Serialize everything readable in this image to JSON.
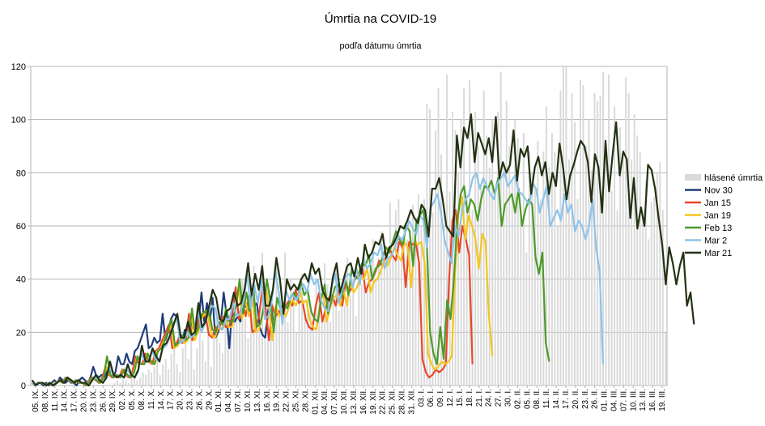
{
  "chart_data": {
    "type": "line",
    "title": "Úmrtia na COVID-19",
    "subtitle": "podľa dátumu úmrtia",
    "ylim": [
      0,
      120
    ],
    "yticks": [
      0,
      20,
      40,
      60,
      80,
      100,
      120
    ],
    "grid": true,
    "legend_position": "right",
    "x_tick_labels": [
      "05. IX.",
      "08. IX.",
      "11. IX.",
      "14. IX.",
      "17. IX.",
      "20. IX.",
      "23. IX.",
      "26. IX.",
      "29. IX.",
      "02. X.",
      "05. X.",
      "08. X.",
      "11. X.",
      "14. X.",
      "17. X.",
      "20. X.",
      "23. X.",
      "26. X.",
      "29. X.",
      "01. XI.",
      "04. XI.",
      "07. XI.",
      "10. XI.",
      "13. XI.",
      "16. XI.",
      "19. XI.",
      "22. XI.",
      "25. XI.",
      "28. XI.",
      "01. XII.",
      "04. XII.",
      "07. XII.",
      "10. XII.",
      "13. XII.",
      "16. XII.",
      "19. XII.",
      "22. XII.",
      "25. XII.",
      "28. XII.",
      "31. XII.",
      "03. I.",
      "06. I.",
      "09. I.",
      "12. I.",
      "15. I.",
      "18. I.",
      "21. I.",
      "24. I.",
      "27. I.",
      "30. I.",
      "02. II.",
      "05. II.",
      "08. II.",
      "11. II.",
      "14. II.",
      "17. II.",
      "20. II.",
      "23. II.",
      "26. II.",
      "01. III.",
      "04. III.",
      "07. III.",
      "10. III.",
      "13. III.",
      "16. III.",
      "19. III."
    ],
    "bars": {
      "name": "hlásené úmrtia",
      "color": "#d9d9d9",
      "values": [
        0,
        0,
        0,
        0,
        0,
        0,
        0,
        0,
        0,
        0,
        0,
        0,
        0,
        0,
        0,
        0,
        0,
        0,
        0,
        0,
        0,
        0,
        0,
        0,
        0,
        0,
        0,
        0,
        0,
        1,
        2,
        1,
        3,
        2,
        1,
        3,
        4,
        2,
        3,
        5,
        4,
        6,
        5,
        7,
        9,
        4,
        8,
        10,
        6,
        12,
        15,
        8,
        5,
        14,
        18,
        10,
        20,
        6,
        14,
        22,
        17,
        9,
        25,
        7,
        18,
        30,
        16,
        12,
        27,
        22,
        19,
        35,
        28,
        24,
        40,
        25,
        18,
        33,
        45,
        20,
        28,
        50,
        22,
        38,
        30,
        25,
        45,
        35,
        28,
        50,
        24,
        40,
        32,
        20,
        38,
        42,
        25,
        35,
        30,
        22,
        40,
        34,
        27,
        46,
        38,
        24,
        32,
        44,
        28,
        36,
        30,
        48,
        34,
        40,
        26,
        42,
        38,
        50,
        36,
        44,
        55,
        40,
        48,
        58,
        46,
        52,
        69,
        48,
        66,
        70,
        50,
        60,
        55,
        58,
        68,
        63,
        72,
        60,
        70,
        106,
        104,
        65,
        96,
        112,
        87,
        60,
        117,
        73,
        103,
        96,
        80,
        100,
        112,
        70,
        115,
        66,
        103,
        90,
        75,
        111,
        94,
        82,
        100,
        72,
        103,
        118,
        83,
        107,
        90,
        78,
        100,
        93,
        66,
        95,
        50,
        88,
        80,
        75,
        92,
        70,
        88,
        105,
        82,
        95,
        88,
        60,
        111,
        120,
        120,
        85,
        110,
        99,
        70,
        115,
        113,
        90,
        100,
        81,
        110,
        107,
        109,
        118,
        90,
        117,
        73,
        105,
        66,
        97,
        88,
        116,
        110,
        85,
        102,
        94,
        88,
        65,
        77,
        55,
        69,
        71,
        80,
        84,
        66,
        20
      ]
    },
    "series": [
      {
        "name": "Nov 30",
        "color": "#1f3d7a",
        "x_end_index": 85,
        "values": [
          1,
          0,
          1,
          1,
          0,
          1,
          0,
          1,
          2,
          1,
          3,
          2,
          1,
          2,
          1,
          1,
          0,
          2,
          3,
          2,
          1,
          3,
          7,
          4,
          3,
          4,
          3,
          6,
          4,
          3,
          5,
          11,
          8,
          8,
          12,
          9,
          8,
          13,
          14,
          17,
          20,
          23,
          14,
          15,
          18,
          16,
          17,
          27,
          17,
          20,
          25,
          27,
          26,
          19,
          16,
          21,
          20,
          26,
          21,
          21,
          25,
          35,
          24,
          31,
          24,
          33,
          18,
          20,
          24,
          35,
          27,
          14,
          28,
          24,
          26,
          24,
          29,
          30,
          28,
          34,
          30,
          31,
          22,
          19,
          18,
          28,
          33,
          22
        ]
      },
      {
        "name": "Jan 15",
        "color": "#e8472a",
        "x_end_index": 155,
        "values": [
          1,
          0,
          1,
          1,
          0,
          1,
          0,
          1,
          2,
          1,
          3,
          2,
          1,
          2,
          1,
          1,
          0,
          2,
          3,
          2,
          1,
          3,
          7,
          4,
          3,
          4,
          3,
          6,
          4,
          3,
          5,
          11,
          8,
          8,
          12,
          9,
          8,
          13,
          14,
          17,
          20,
          23,
          14,
          15,
          18,
          16,
          17,
          27,
          17,
          20,
          25,
          27,
          26,
          19,
          18,
          22,
          21,
          26,
          22,
          22,
          27,
          37,
          25,
          32,
          26,
          34,
          20,
          21,
          26,
          37,
          29,
          17,
          30,
          26,
          28,
          26,
          30,
          32,
          30,
          36,
          31,
          32,
          25,
          22,
          21,
          30,
          35,
          24,
          29,
          33,
          34,
          30,
          36,
          30,
          39,
          35,
          37,
          41,
          40,
          44,
          35,
          39,
          40,
          43,
          47,
          45,
          48,
          52,
          49,
          47,
          54,
          52,
          37,
          54,
          53,
          54,
          46,
          10,
          5,
          3,
          4,
          6,
          5,
          6,
          8,
          40,
          62,
          66,
          50,
          60,
          55,
          49,
          8
        ]
      },
      {
        "name": "Jan 19",
        "color": "#f5c51c",
        "x_end_index": 162,
        "values": [
          1,
          0,
          1,
          1,
          0,
          1,
          0,
          1,
          2,
          1,
          3,
          2,
          1,
          2,
          1,
          1,
          0,
          2,
          3,
          2,
          1,
          3,
          7,
          4,
          3,
          4,
          3,
          6,
          4,
          3,
          5,
          11,
          8,
          8,
          12,
          9,
          8,
          13,
          14,
          17,
          20,
          23,
          14,
          15,
          18,
          16,
          17,
          27,
          17,
          20,
          25,
          27,
          26,
          19,
          18,
          22,
          21,
          26,
          22,
          22,
          27,
          37,
          25,
          32,
          26,
          34,
          20,
          21,
          26,
          37,
          29,
          17,
          30,
          26,
          28,
          26,
          30,
          32,
          30,
          36,
          31,
          32,
          25,
          22,
          21,
          30,
          35,
          24,
          29,
          33,
          34,
          30,
          36,
          30,
          39,
          35,
          37,
          41,
          40,
          44,
          35,
          39,
          40,
          43,
          47,
          45,
          48,
          52,
          49,
          47,
          54,
          52,
          37,
          54,
          53,
          54,
          46,
          12,
          8,
          6,
          7,
          9,
          8,
          9,
          11,
          42,
          65,
          71,
          55,
          64,
          60,
          55,
          44,
          57,
          54,
          26,
          11
        ]
      },
      {
        "name": "Feb 13",
        "color": "#4d9a2a",
        "x_end_index": 182,
        "values": [
          1,
          0,
          1,
          1,
          0,
          1,
          0,
          1,
          2,
          1,
          3,
          2,
          1,
          2,
          1,
          1,
          0,
          2,
          3,
          2,
          1,
          3,
          11,
          4,
          3,
          4,
          3,
          6,
          4,
          3,
          5,
          11,
          8,
          8,
          12,
          9,
          8,
          13,
          14,
          17,
          21,
          25,
          15,
          16,
          19,
          17,
          18,
          29,
          19,
          22,
          27,
          28,
          28,
          21,
          20,
          24,
          23,
          29,
          24,
          24,
          30,
          40,
          27,
          35,
          28,
          37,
          22,
          23,
          29,
          40,
          32,
          20,
          33,
          29,
          31,
          29,
          33,
          35,
          32,
          39,
          34,
          36,
          28,
          25,
          24,
          33,
          38,
          27,
          32,
          37,
          38,
          33,
          40,
          34,
          44,
          40,
          42,
          46,
          45,
          49,
          40,
          44,
          45,
          48,
          52,
          50,
          54,
          58,
          55,
          53,
          60,
          58,
          45,
          62,
          64,
          66,
          55,
          20,
          12,
          8,
          22,
          10,
          32,
          25,
          40,
          62,
          72,
          75,
          65,
          70,
          68,
          62,
          70,
          75,
          74,
          77,
          72,
          78,
          60,
          68,
          70,
          72,
          65,
          74,
          60,
          66,
          70,
          68,
          48,
          42,
          50,
          16,
          9
        ]
      },
      {
        "name": "Mar 2",
        "color": "#8dc3ea",
        "x_end_index": 201,
        "values": [
          1,
          0,
          1,
          1,
          0,
          1,
          0,
          1,
          2,
          1,
          3,
          2,
          1,
          2,
          1,
          1,
          0,
          2,
          3,
          2,
          1,
          3,
          7,
          4,
          3,
          4,
          3,
          6,
          4,
          3,
          5,
          12,
          9,
          9,
          13,
          10,
          9,
          14,
          15,
          18,
          22,
          26,
          16,
          17,
          20,
          18,
          19,
          30,
          20,
          23,
          28,
          30,
          29,
          22,
          21,
          25,
          25,
          31,
          26,
          27,
          32,
          42,
          29,
          38,
          31,
          40,
          25,
          26,
          32,
          43,
          35,
          23,
          36,
          32,
          34,
          32,
          36,
          38,
          35,
          42,
          38,
          40,
          32,
          29,
          28,
          37,
          42,
          31,
          36,
          41,
          42,
          37,
          44,
          38,
          48,
          44,
          46,
          50,
          49,
          53,
          44,
          48,
          49,
          52,
          56,
          55,
          58,
          62,
          59,
          57,
          64,
          62,
          52,
          67,
          69,
          72,
          65,
          55,
          50,
          46,
          60,
          56,
          66,
          70,
          72,
          78,
          80,
          74,
          78,
          75,
          72,
          70,
          76,
          78,
          80,
          75,
          77,
          79,
          73,
          72,
          70,
          68,
          76,
          74,
          65,
          70,
          75,
          60,
          63,
          66,
          62,
          72,
          65,
          68,
          58,
          62,
          60,
          55,
          60,
          70,
          52,
          43,
          8
        ]
      },
      {
        "name": "Mar 21",
        "color": "#233112",
        "x_end_index": 233,
        "values": [
          2,
          0,
          1,
          1,
          0,
          1,
          0,
          1,
          2,
          1,
          3,
          2,
          1,
          2,
          1,
          1,
          0,
          2,
          4,
          2,
          1,
          3,
          9,
          4,
          3,
          4,
          3,
          8,
          4,
          3,
          6,
          15,
          9,
          9,
          14,
          11,
          9,
          15,
          16,
          19,
          23,
          27,
          18,
          18,
          24,
          19,
          20,
          31,
          22,
          24,
          30,
          36,
          33,
          25,
          24,
          28,
          29,
          35,
          30,
          31,
          36,
          46,
          34,
          42,
          36,
          45,
          30,
          30,
          36,
          48,
          40,
          27,
          40,
          36,
          38,
          36,
          40,
          42,
          39,
          46,
          42,
          44,
          36,
          33,
          32,
          41,
          46,
          35,
          40,
          45,
          46,
          41,
          48,
          42,
          53,
          48,
          50,
          54,
          53,
          57,
          48,
          52,
          53,
          56,
          60,
          59,
          62,
          66,
          63,
          61,
          68,
          66,
          56,
          74,
          74,
          78,
          70,
          60,
          58,
          56,
          94,
          82,
          97,
          93,
          102,
          84,
          95,
          91,
          87,
          93,
          84,
          101,
          78,
          84,
          80,
          83,
          96,
          77,
          89,
          86,
          90,
          72,
          82,
          86,
          79,
          84,
          72,
          80,
          75,
          91,
          82,
          70,
          79,
          83,
          88,
          92,
          90,
          84,
          69,
          87,
          82,
          65,
          92,
          73,
          87,
          99,
          79,
          88,
          85,
          63,
          78,
          59,
          67,
          60,
          83,
          81,
          74,
          63,
          53,
          38,
          52,
          46,
          38,
          45,
          50,
          30,
          35,
          23
        ]
      }
    ]
  }
}
